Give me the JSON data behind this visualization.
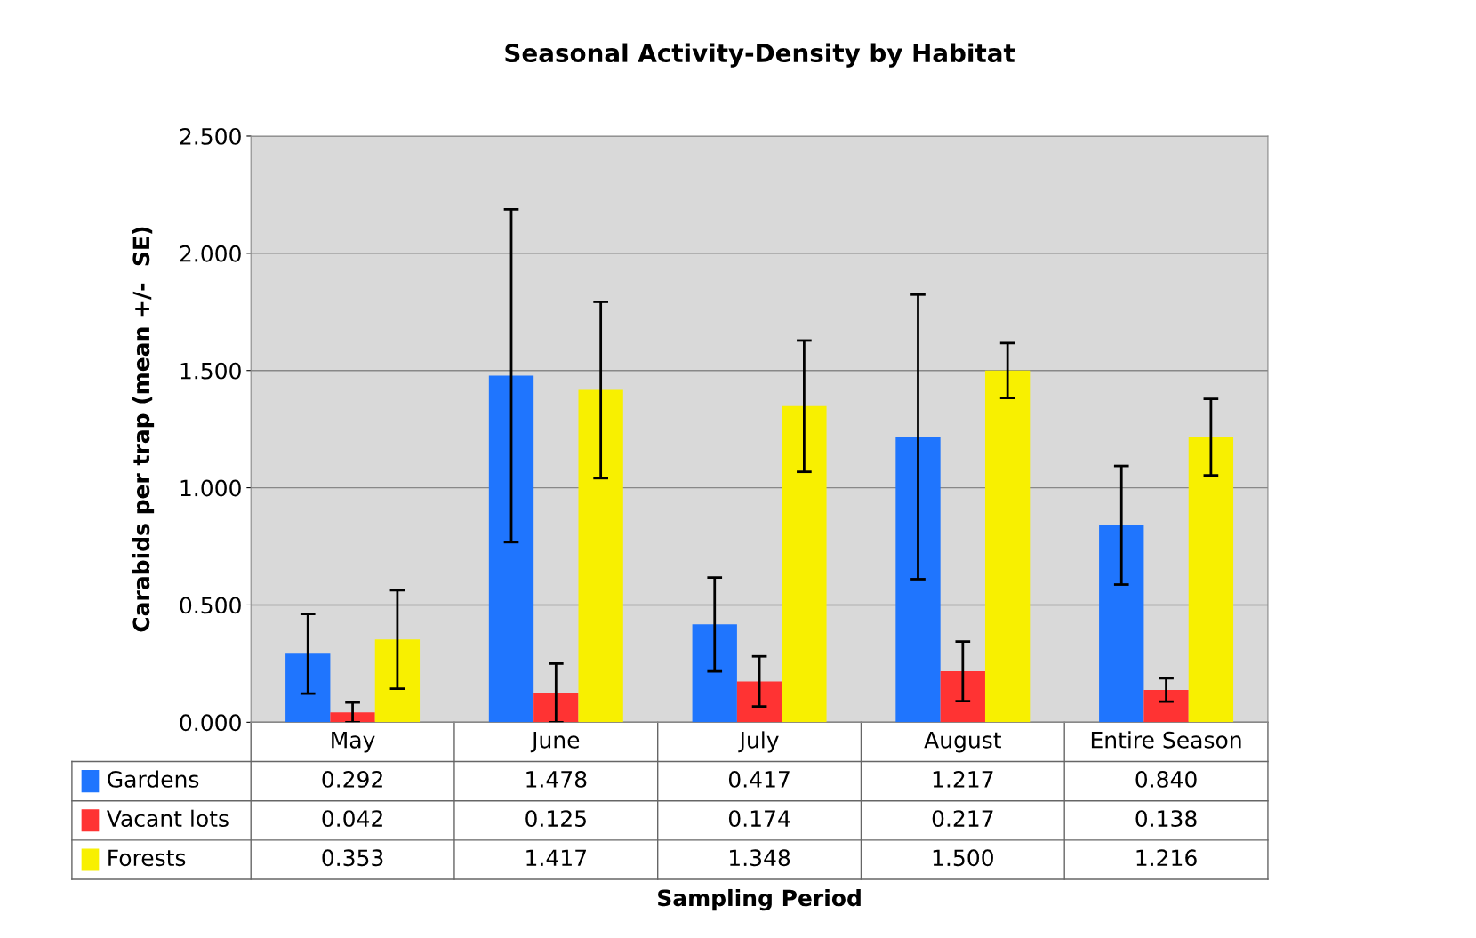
{
  "chart_data": {
    "type": "bar",
    "title": "Seasonal Activity-Density by Habitat",
    "annotations": [
      "Sampling Period"
    ],
    "ylabel": "Carabids per trap (mean +/-  SE)",
    "categories": [
      "May",
      "June",
      "July",
      "August",
      "Entire Season"
    ],
    "series": [
      {
        "name": "Gardens",
        "color": "#1f75fe",
        "values": [
          0.292,
          1.478,
          0.417,
          1.217,
          0.84
        ],
        "errors": [
          0.17,
          0.71,
          0.2,
          0.607,
          0.253
        ],
        "value_labels": [
          "0.292",
          "1.478",
          "0.417",
          "1.217",
          "0.840"
        ]
      },
      {
        "name": "Vacant lots",
        "color": "#ff3333",
        "values": [
          0.042,
          0.125,
          0.174,
          0.217,
          0.138
        ],
        "errors": [
          0.042,
          0.125,
          0.107,
          0.127,
          0.05
        ],
        "value_labels": [
          "0.042",
          "0.125",
          "0.174",
          "0.217",
          "0.138"
        ]
      },
      {
        "name": "Forests",
        "color": "#f8f000",
        "values": [
          0.353,
          1.417,
          1.348,
          1.5,
          1.216
        ],
        "errors": [
          0.21,
          0.376,
          0.28,
          0.117,
          0.163
        ],
        "value_labels": [
          "0.353",
          "1.417",
          "1.348",
          "1.500",
          "1.216"
        ]
      }
    ],
    "ylim": [
      0,
      2.5
    ],
    "yticks": [
      {
        "value": 0,
        "label": "0.000"
      },
      {
        "value": 0.5,
        "label": "0.500"
      },
      {
        "value": 1.0,
        "label": "1.000"
      },
      {
        "value": 1.5,
        "label": "1.500"
      },
      {
        "value": 2.0,
        "label": "2.000"
      },
      {
        "value": 2.5,
        "label": "2.500"
      }
    ],
    "grid": "y",
    "legend": "bottom left"
  }
}
